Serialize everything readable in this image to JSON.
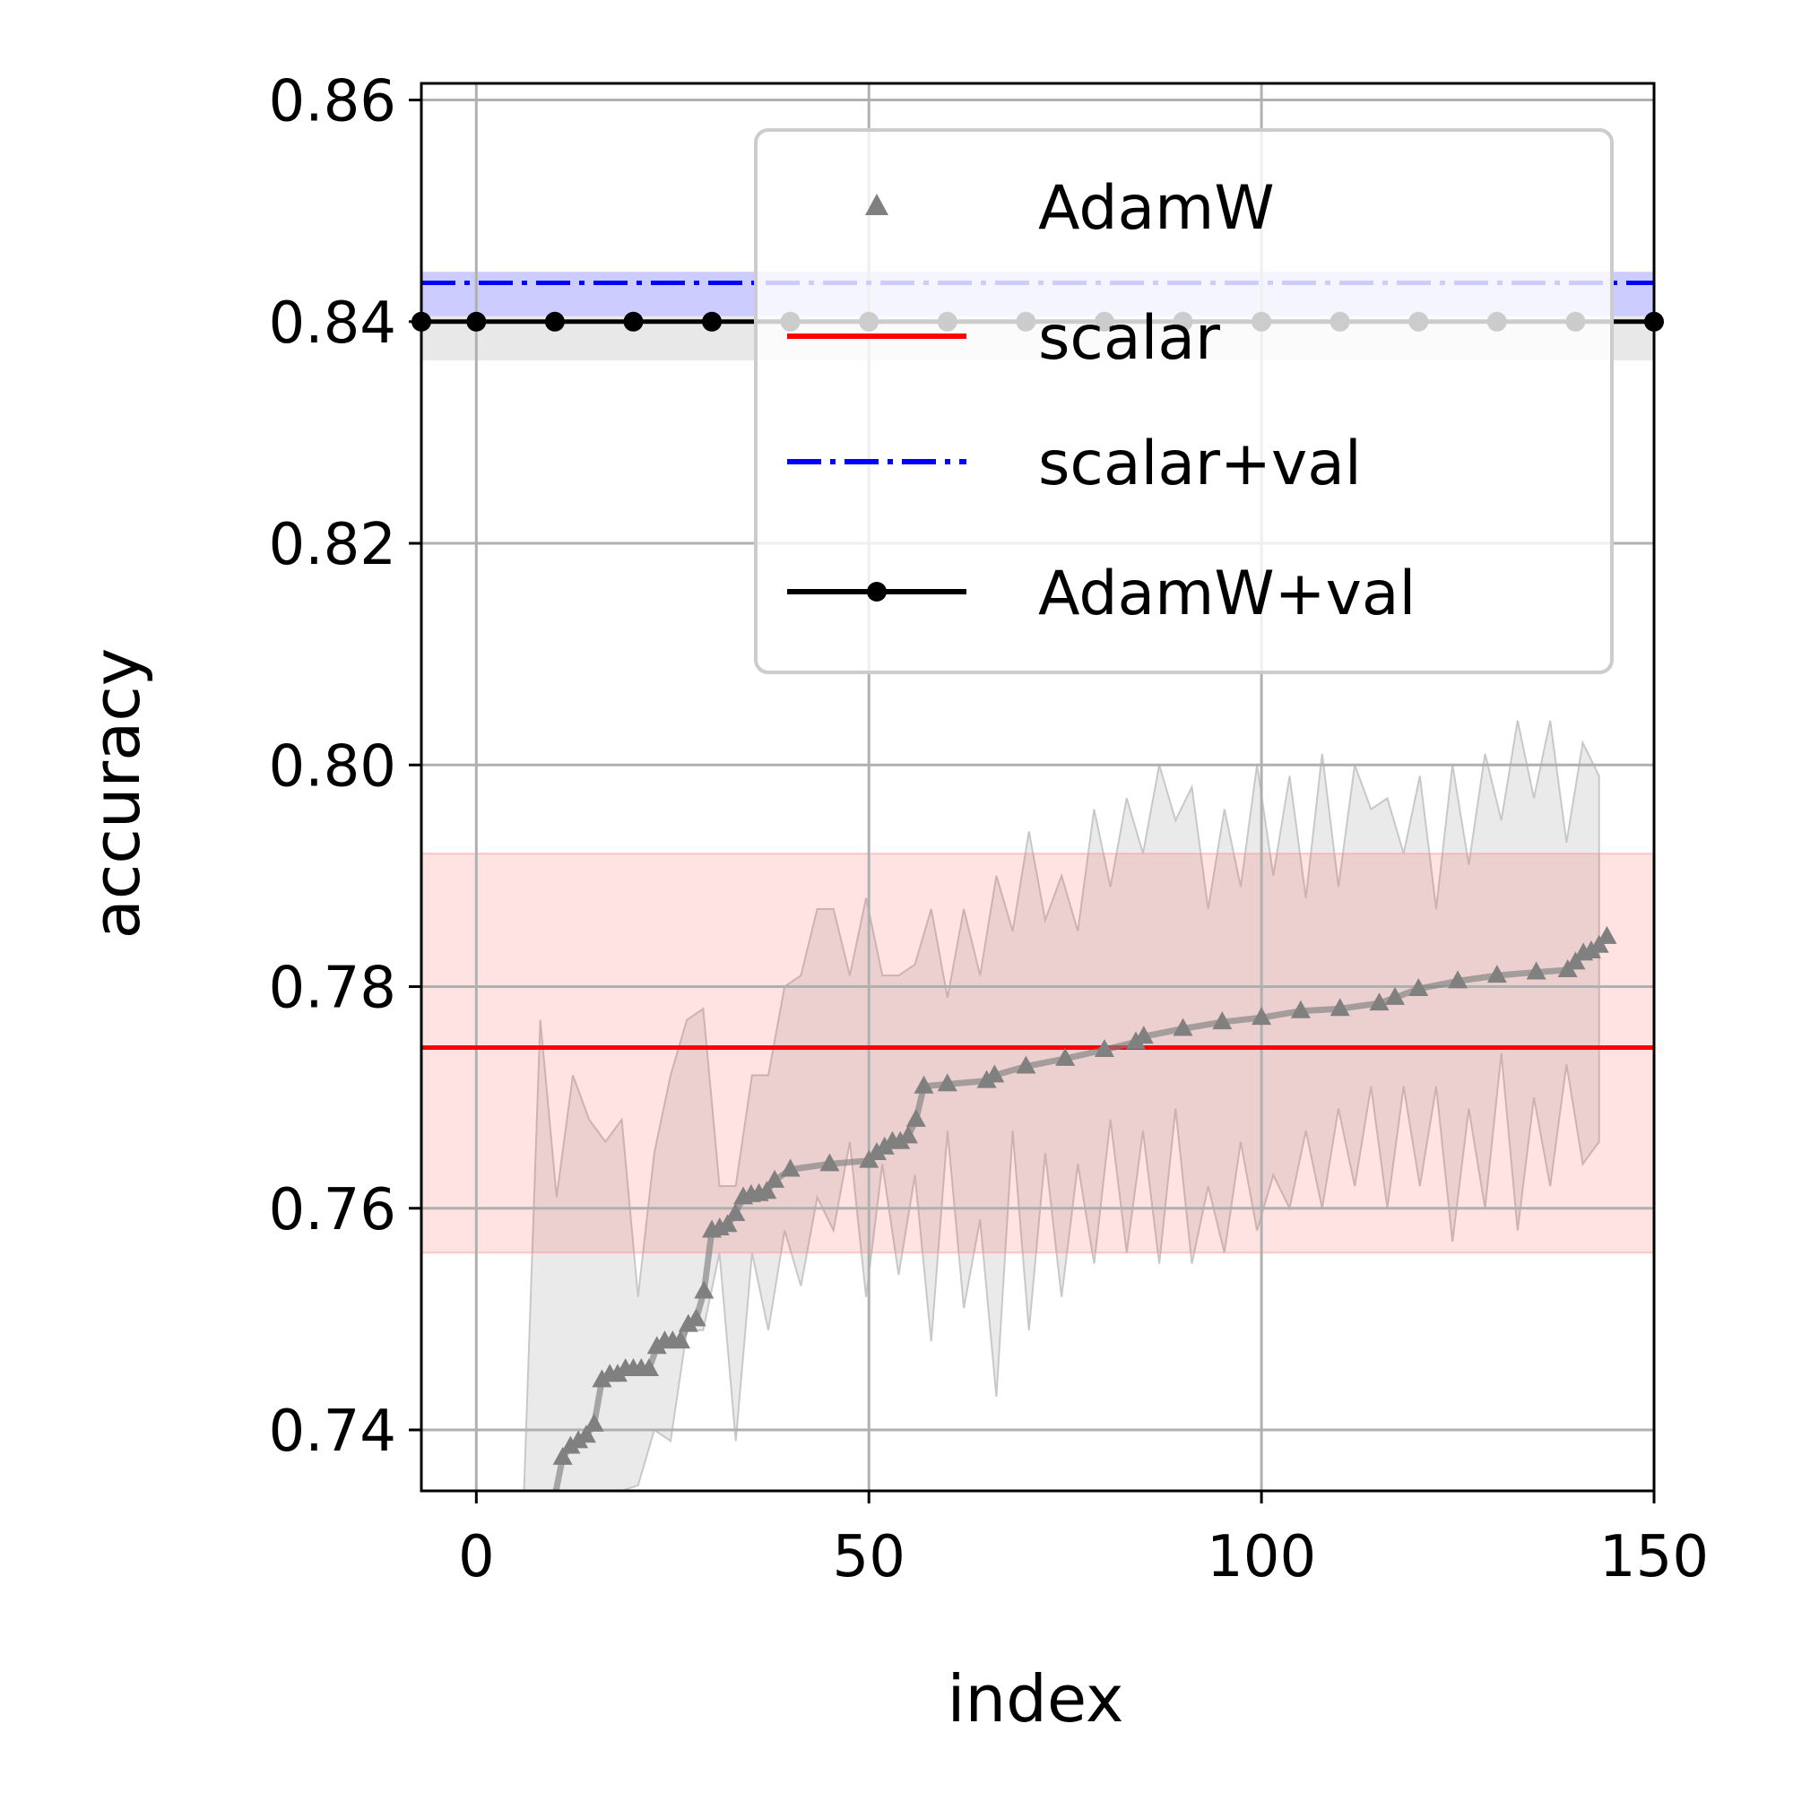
{
  "chart_data": {
    "type": "line",
    "xlabel": "index",
    "ylabel": "accuracy",
    "xlim": [
      -7,
      150
    ],
    "ylim": [
      0.7345,
      0.8615
    ],
    "xticks": [
      0,
      50,
      100,
      150
    ],
    "yticks": [
      0.74,
      0.76,
      0.78,
      0.8,
      0.82,
      0.84,
      0.86
    ],
    "xtick_labels": [
      "0",
      "50",
      "100",
      "150"
    ],
    "ytick_labels": [
      "0.74",
      "0.76",
      "0.78",
      "0.80",
      "0.82",
      "0.84",
      "0.86"
    ],
    "grid": true,
    "legend_placement": "upper right",
    "series": [
      {
        "name": "AdamW",
        "style": "line-with-triangle-markers",
        "color": "#808080",
        "x": [
          0,
          5,
          10,
          11,
          12,
          13,
          14,
          15,
          16,
          17,
          18,
          19,
          20,
          21,
          22,
          23,
          24,
          25,
          26,
          27,
          28,
          29,
          30,
          31,
          32,
          33,
          34,
          35,
          36,
          37,
          38,
          40,
          45,
          50,
          51,
          52,
          53,
          54,
          55,
          56,
          57,
          60,
          65,
          66,
          70,
          75,
          80,
          84,
          85,
          90,
          95,
          100,
          105,
          110,
          115,
          117,
          120,
          125,
          130,
          135,
          139,
          140,
          141,
          142,
          143,
          144
        ],
        "y": [
          0.728,
          0.731,
          0.734,
          0.7375,
          0.7385,
          0.739,
          0.7395,
          0.7405,
          0.7445,
          0.745,
          0.745,
          0.7455,
          0.7455,
          0.7455,
          0.7455,
          0.7475,
          0.748,
          0.748,
          0.748,
          0.7495,
          0.75,
          0.7525,
          0.758,
          0.7582,
          0.7585,
          0.7595,
          0.761,
          0.7612,
          0.7613,
          0.7615,
          0.7625,
          0.7635,
          0.764,
          0.7643,
          0.765,
          0.7655,
          0.766,
          0.766,
          0.7665,
          0.768,
          0.771,
          0.7712,
          0.7715,
          0.772,
          0.7728,
          0.7735,
          0.7743,
          0.775,
          0.7755,
          0.7762,
          0.7768,
          0.7772,
          0.7778,
          0.778,
          0.7785,
          0.779,
          0.7798,
          0.7805,
          0.781,
          0.7813,
          0.7815,
          0.7822,
          0.783,
          0.7832,
          0.7837,
          0.7845
        ]
      },
      {
        "name": "scalar",
        "style": "solid",
        "color": "#ff0000",
        "y": 0.7745,
        "band": [
          0.756,
          0.792
        ]
      },
      {
        "name": "scalar+val",
        "style": "dashdot",
        "color": "#0000ff",
        "y": 0.8435,
        "band": [
          0.8405,
          0.8445
        ]
      },
      {
        "name": "AdamW+val",
        "style": "line-with-dot-markers",
        "color": "#000000",
        "y": 0.84,
        "band": [
          0.8365,
          0.8405
        ],
        "marker_x": [
          -7,
          0,
          10,
          20,
          30,
          40,
          50,
          60,
          70,
          80,
          90,
          100,
          110,
          120,
          130,
          140,
          150
        ]
      }
    ],
    "adamw_band_upper": [
      0.7,
      0.729,
      0.777,
      0.761,
      0.772,
      0.768,
      0.766,
      0.768,
      0.752,
      0.765,
      0.772,
      0.777,
      0.778,
      0.762,
      0.762,
      0.772,
      0.772,
      0.78,
      0.781,
      0.787,
      0.787,
      0.781,
      0.788,
      0.781,
      0.781,
      0.782,
      0.787,
      0.779,
      0.787,
      0.781,
      0.79,
      0.785,
      0.794,
      0.786,
      0.79,
      0.785,
      0.796,
      0.789,
      0.797,
      0.792,
      0.8,
      0.795,
      0.798,
      0.787,
      0.796,
      0.789,
      0.8,
      0.79,
      0.799,
      0.788,
      0.801,
      0.789,
      0.8,
      0.796,
      0.797,
      0.792,
      0.799,
      0.787,
      0.8,
      0.791,
      0.801,
      0.795,
      0.804,
      0.797,
      0.804,
      0.793,
      0.802,
      0.799
    ],
    "adamw_band_lower": [
      0.7,
      0.7,
      0.7,
      0.7,
      0.7,
      0.7,
      0.71,
      0.72,
      0.735,
      0.74,
      0.739,
      0.749,
      0.749,
      0.756,
      0.739,
      0.756,
      0.749,
      0.758,
      0.753,
      0.761,
      0.758,
      0.766,
      0.752,
      0.764,
      0.754,
      0.763,
      0.748,
      0.767,
      0.751,
      0.759,
      0.743,
      0.767,
      0.749,
      0.765,
      0.752,
      0.764,
      0.755,
      0.768,
      0.756,
      0.767,
      0.755,
      0.769,
      0.755,
      0.762,
      0.756,
      0.766,
      0.758,
      0.763,
      0.76,
      0.767,
      0.76,
      0.769,
      0.762,
      0.771,
      0.76,
      0.771,
      0.762,
      0.771,
      0.757,
      0.769,
      0.76,
      0.774,
      0.758,
      0.77,
      0.762,
      0.773,
      0.764,
      0.766
    ]
  },
  "legend": {
    "items": [
      {
        "label": "AdamW",
        "symbol": "triangle"
      },
      {
        "label": "scalar",
        "symbol": "solid-red"
      },
      {
        "label": "scalar+val",
        "symbol": "dashdot-blue"
      },
      {
        "label": "AdamW+val",
        "symbol": "line-dot-black"
      }
    ]
  }
}
